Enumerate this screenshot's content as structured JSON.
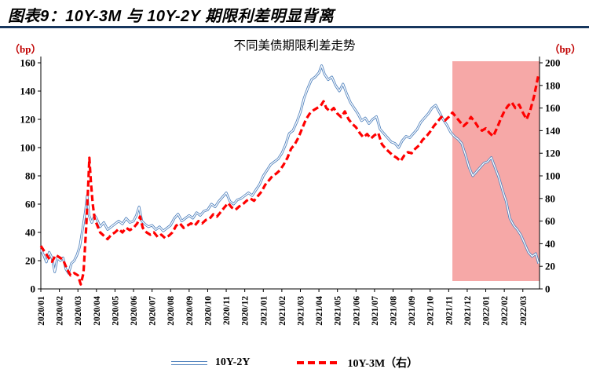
{
  "header": {
    "title": "图表9：10Y-3M 与 10Y-2Y 期限利差明显背离"
  },
  "chart": {
    "title": "不同美债期限利差走势",
    "left_axis_unit": "（bp）",
    "right_axis_unit": "（bp）",
    "legend_labels": [
      "10Y-2Y",
      "10Y-3M（右）"
    ]
  },
  "colors": {
    "title_underline": "#17375e",
    "axis_unit_text": "#c00000",
    "series_10y2y": "#4f81bd",
    "series_10y3m": "#ff0000",
    "highlight": "rgba(240,110,108,0.6)"
  },
  "chart_data": {
    "type": "line",
    "title": "不同美债期限利差走势",
    "grid": false,
    "legend_position": "bottom",
    "x_range": [
      0,
      26.9
    ],
    "x_tick_labels": [
      "2020/01",
      "2020/02",
      "2020/03",
      "2020/04",
      "2020/05",
      "2020/06",
      "2020/07",
      "2020/08",
      "2020/09",
      "2020/10",
      "2020/11",
      "2020/12",
      "2021/01",
      "2021/02",
      "2021/03",
      "2021/04",
      "2021/05",
      "2021/06",
      "2021/07",
      "2021/08",
      "2021/09",
      "2021/10",
      "2021/11",
      "2021/12",
      "2022/01",
      "2022/02",
      "2022/03"
    ],
    "left_axis": {
      "unit": "（bp）",
      "min": 0,
      "max": 160,
      "step": 20,
      "ticks": [
        0,
        20,
        40,
        60,
        80,
        100,
        120,
        140,
        160
      ]
    },
    "right_axis": {
      "unit": "（bp）",
      "min": 0,
      "max": 200,
      "step": 20,
      "ticks": [
        0,
        20,
        40,
        60,
        80,
        100,
        120,
        140,
        160,
        180,
        200
      ]
    },
    "highlight_region": {
      "x_start": 22.2,
      "x_end": 26.9,
      "color": "rgba(240,110,108,0.6)"
    },
    "series": [
      {
        "name": "10Y-2Y",
        "axis": "left",
        "color": "#4f81bd",
        "style": "double-line",
        "points": [
          [
            0,
            28
          ],
          [
            0.15,
            24
          ],
          [
            0.3,
            19
          ],
          [
            0.45,
            26
          ],
          [
            0.6,
            22
          ],
          [
            0.75,
            12
          ],
          [
            0.9,
            22
          ],
          [
            1.05,
            20
          ],
          [
            1.2,
            22
          ],
          [
            1.35,
            14
          ],
          [
            1.5,
            11
          ],
          [
            1.65,
            18
          ],
          [
            1.8,
            20
          ],
          [
            1.95,
            24
          ],
          [
            2.1,
            30
          ],
          [
            2.25,
            42
          ],
          [
            2.4,
            55
          ],
          [
            2.5,
            66
          ],
          [
            2.6,
            52
          ],
          [
            2.75,
            47
          ],
          [
            2.9,
            52
          ],
          [
            3,
            50
          ],
          [
            3.2,
            44
          ],
          [
            3.4,
            47
          ],
          [
            3.6,
            42
          ],
          [
            3.8,
            44
          ],
          [
            4,
            46
          ],
          [
            4.2,
            48
          ],
          [
            4.4,
            46
          ],
          [
            4.6,
            50
          ],
          [
            4.8,
            47
          ],
          [
            5,
            48
          ],
          [
            5.15,
            52
          ],
          [
            5.3,
            58
          ],
          [
            5.45,
            48
          ],
          [
            5.6,
            46
          ],
          [
            5.8,
            44
          ],
          [
            6,
            45
          ],
          [
            6.2,
            42
          ],
          [
            6.4,
            44
          ],
          [
            6.6,
            41
          ],
          [
            6.8,
            43
          ],
          [
            7,
            45
          ],
          [
            7.2,
            50
          ],
          [
            7.4,
            53
          ],
          [
            7.6,
            48
          ],
          [
            7.8,
            50
          ],
          [
            8,
            52
          ],
          [
            8.2,
            50
          ],
          [
            8.4,
            54
          ],
          [
            8.6,
            52
          ],
          [
            8.8,
            55
          ],
          [
            9,
            56
          ],
          [
            9.2,
            60
          ],
          [
            9.4,
            58
          ],
          [
            9.6,
            62
          ],
          [
            9.8,
            65
          ],
          [
            10,
            68
          ],
          [
            10.2,
            62
          ],
          [
            10.4,
            60
          ],
          [
            10.6,
            63
          ],
          [
            10.8,
            64
          ],
          [
            11,
            66
          ],
          [
            11.2,
            68
          ],
          [
            11.4,
            66
          ],
          [
            11.6,
            70
          ],
          [
            11.8,
            74
          ],
          [
            12,
            80
          ],
          [
            12.2,
            84
          ],
          [
            12.4,
            88
          ],
          [
            12.6,
            90
          ],
          [
            12.8,
            92
          ],
          [
            13,
            96
          ],
          [
            13.2,
            102
          ],
          [
            13.4,
            110
          ],
          [
            13.6,
            112
          ],
          [
            13.8,
            118
          ],
          [
            14,
            125
          ],
          [
            14.2,
            135
          ],
          [
            14.4,
            142
          ],
          [
            14.6,
            148
          ],
          [
            14.8,
            150
          ],
          [
            15,
            153
          ],
          [
            15.15,
            158
          ],
          [
            15.3,
            152
          ],
          [
            15.5,
            148
          ],
          [
            15.7,
            150
          ],
          [
            15.9,
            144
          ],
          [
            16.1,
            140
          ],
          [
            16.3,
            145
          ],
          [
            16.5,
            138
          ],
          [
            16.7,
            132
          ],
          [
            16.9,
            128
          ],
          [
            17.1,
            124
          ],
          [
            17.3,
            119
          ],
          [
            17.5,
            121
          ],
          [
            17.7,
            117
          ],
          [
            17.9,
            120
          ],
          [
            18.1,
            122
          ],
          [
            18.3,
            113
          ],
          [
            18.5,
            110
          ],
          [
            18.7,
            107
          ],
          [
            18.9,
            104
          ],
          [
            19.1,
            103
          ],
          [
            19.3,
            100
          ],
          [
            19.5,
            105
          ],
          [
            19.7,
            108
          ],
          [
            19.9,
            107
          ],
          [
            20.1,
            110
          ],
          [
            20.3,
            113
          ],
          [
            20.5,
            118
          ],
          [
            20.7,
            121
          ],
          [
            20.9,
            124
          ],
          [
            21.1,
            128
          ],
          [
            21.3,
            130
          ],
          [
            21.5,
            125
          ],
          [
            21.7,
            120
          ],
          [
            21.9,
            116
          ],
          [
            22.1,
            111
          ],
          [
            22.3,
            108
          ],
          [
            22.5,
            106
          ],
          [
            22.7,
            103
          ],
          [
            22.9,
            95
          ],
          [
            23.1,
            86
          ],
          [
            23.3,
            80
          ],
          [
            23.5,
            83
          ],
          [
            23.7,
            86
          ],
          [
            23.9,
            89
          ],
          [
            24.1,
            90
          ],
          [
            24.3,
            93
          ],
          [
            24.5,
            86
          ],
          [
            24.7,
            79
          ],
          [
            24.9,
            70
          ],
          [
            25.1,
            62
          ],
          [
            25.3,
            50
          ],
          [
            25.5,
            45
          ],
          [
            25.7,
            42
          ],
          [
            25.9,
            38
          ],
          [
            26.1,
            32
          ],
          [
            26.3,
            26
          ],
          [
            26.5,
            23
          ],
          [
            26.7,
            25
          ],
          [
            26.85,
            18
          ]
        ]
      },
      {
        "name": "10Y-3M（右）",
        "axis": "right",
        "color": "#ff0000",
        "style": "dashed",
        "points": [
          [
            0,
            38
          ],
          [
            0.2,
            33
          ],
          [
            0.4,
            28
          ],
          [
            0.6,
            24
          ],
          [
            0.8,
            30
          ],
          [
            1,
            28
          ],
          [
            1.2,
            26
          ],
          [
            1.4,
            18
          ],
          [
            1.6,
            12
          ],
          [
            1.8,
            14
          ],
          [
            2,
            12
          ],
          [
            2.15,
            4
          ],
          [
            2.3,
            14
          ],
          [
            2.45,
            55
          ],
          [
            2.55,
            90
          ],
          [
            2.62,
            116
          ],
          [
            2.7,
            95
          ],
          [
            2.8,
            75
          ],
          [
            2.9,
            62
          ],
          [
            3,
            58
          ],
          [
            3.2,
            50
          ],
          [
            3.4,
            47
          ],
          [
            3.6,
            44
          ],
          [
            3.8,
            48
          ],
          [
            4,
            50
          ],
          [
            4.2,
            53
          ],
          [
            4.4,
            50
          ],
          [
            4.6,
            54
          ],
          [
            4.8,
            52
          ],
          [
            5,
            54
          ],
          [
            5.2,
            58
          ],
          [
            5.35,
            64
          ],
          [
            5.5,
            54
          ],
          [
            5.7,
            50
          ],
          [
            5.9,
            48
          ],
          [
            6.1,
            50
          ],
          [
            6.3,
            46
          ],
          [
            6.5,
            48
          ],
          [
            6.7,
            45
          ],
          [
            6.9,
            47
          ],
          [
            7.1,
            50
          ],
          [
            7.3,
            56
          ],
          [
            7.5,
            58
          ],
          [
            7.7,
            54
          ],
          [
            7.9,
            56
          ],
          [
            8.1,
            58
          ],
          [
            8.3,
            56
          ],
          [
            8.5,
            60
          ],
          [
            8.7,
            58
          ],
          [
            8.9,
            61
          ],
          [
            9.1,
            62
          ],
          [
            9.3,
            66
          ],
          [
            9.5,
            64
          ],
          [
            9.7,
            68
          ],
          [
            9.9,
            72
          ],
          [
            10.1,
            76
          ],
          [
            10.3,
            72
          ],
          [
            10.5,
            70
          ],
          [
            10.7,
            73
          ],
          [
            10.9,
            75
          ],
          [
            11.1,
            78
          ],
          [
            11.3,
            80
          ],
          [
            11.5,
            78
          ],
          [
            11.7,
            82
          ],
          [
            11.9,
            86
          ],
          [
            12.1,
            92
          ],
          [
            12.3,
            96
          ],
          [
            12.5,
            100
          ],
          [
            12.7,
            102
          ],
          [
            12.9,
            105
          ],
          [
            13.1,
            110
          ],
          [
            13.3,
            116
          ],
          [
            13.5,
            124
          ],
          [
            13.7,
            128
          ],
          [
            13.9,
            134
          ],
          [
            14.1,
            142
          ],
          [
            14.3,
            150
          ],
          [
            14.5,
            155
          ],
          [
            14.7,
            158
          ],
          [
            14.9,
            160
          ],
          [
            15.1,
            162
          ],
          [
            15.25,
            166
          ],
          [
            15.4,
            160
          ],
          [
            15.6,
            157
          ],
          [
            15.8,
            160
          ],
          [
            16,
            155
          ],
          [
            16.2,
            152
          ],
          [
            16.4,
            157
          ],
          [
            16.6,
            150
          ],
          [
            16.8,
            146
          ],
          [
            17,
            143
          ],
          [
            17.2,
            138
          ],
          [
            17.4,
            134
          ],
          [
            17.6,
            137
          ],
          [
            17.8,
            133
          ],
          [
            18,
            136
          ],
          [
            18.2,
            138
          ],
          [
            18.4,
            128
          ],
          [
            18.6,
            124
          ],
          [
            18.8,
            121
          ],
          [
            19,
            118
          ],
          [
            19.2,
            116
          ],
          [
            19.4,
            113
          ],
          [
            19.6,
            118
          ],
          [
            19.8,
            121
          ],
          [
            20,
            120
          ],
          [
            20.2,
            124
          ],
          [
            20.4,
            127
          ],
          [
            20.6,
            132
          ],
          [
            20.8,
            135
          ],
          [
            21,
            139
          ],
          [
            21.2,
            144
          ],
          [
            21.4,
            148
          ],
          [
            21.6,
            152
          ],
          [
            21.8,
            149
          ],
          [
            22,
            152
          ],
          [
            22.2,
            156
          ],
          [
            22.4,
            152
          ],
          [
            22.6,
            148
          ],
          [
            22.8,
            144
          ],
          [
            23,
            147
          ],
          [
            23.2,
            152
          ],
          [
            23.4,
            148
          ],
          [
            23.6,
            143
          ],
          [
            23.8,
            140
          ],
          [
            24,
            142
          ],
          [
            24.2,
            138
          ],
          [
            24.4,
            135
          ],
          [
            24.6,
            142
          ],
          [
            24.8,
            150
          ],
          [
            25,
            157
          ],
          [
            25.2,
            162
          ],
          [
            25.4,
            165
          ],
          [
            25.6,
            160
          ],
          [
            25.8,
            163
          ],
          [
            26,
            156
          ],
          [
            26.2,
            150
          ],
          [
            26.4,
            158
          ],
          [
            26.6,
            170
          ],
          [
            26.75,
            182
          ],
          [
            26.85,
            190
          ]
        ]
      }
    ]
  }
}
